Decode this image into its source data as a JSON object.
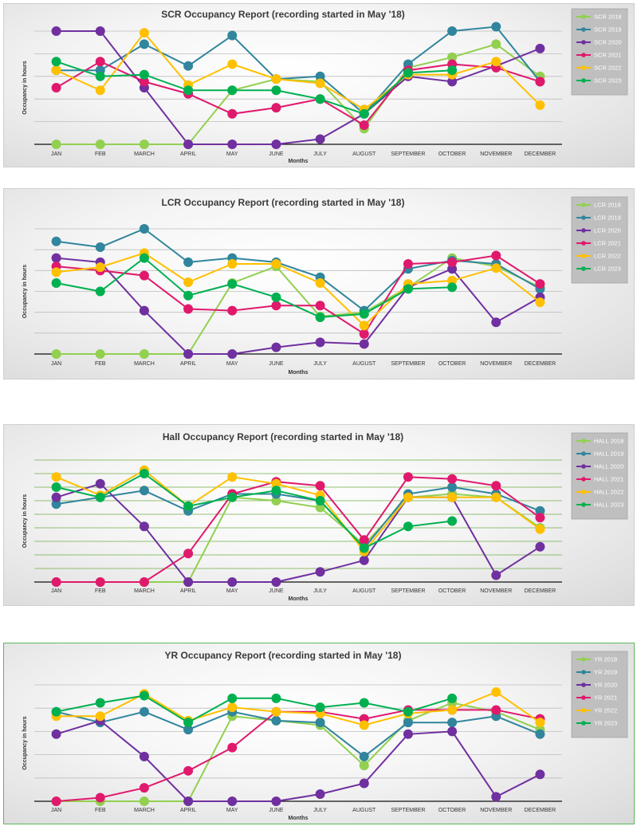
{
  "chart_data": [
    {
      "type": "line",
      "title": "SCR  Occupancy Report (recording started in May '18)",
      "xlabel": "Months",
      "ylabel": "Occupancy in hours",
      "categories": [
        "JAN",
        "FEB",
        "MARCH",
        "APRIL",
        "MAY",
        "JUNE",
        "JULY",
        "AUGUST",
        "SEPTEMBER",
        "OCTOBER",
        "NOVEMBER",
        "DECEMBER"
      ],
      "ylim": [
        0,
        130
      ],
      "grid": true,
      "legend": "right",
      "series": [
        {
          "name": "SCR 2018",
          "color": "#92d050",
          "values": [
            0,
            0,
            0,
            0,
            62,
            75,
            72,
            18,
            88,
            100,
            115,
            78
          ]
        },
        {
          "name": "SCR 2019",
          "color": "#31859c",
          "values": [
            85,
            85,
            115,
            90,
            125,
            75,
            78,
            35,
            92,
            130,
            135,
            72
          ]
        },
        {
          "name": "SCR 2020",
          "color": "#7030a0",
          "values": [
            130,
            130,
            65,
            0,
            0,
            0,
            6,
            35,
            78,
            72,
            90,
            110
          ]
        },
        {
          "name": "SCR 2021",
          "color": "#e0196c",
          "values": [
            65,
            95,
            72,
            58,
            35,
            42,
            52,
            22,
            85,
            92,
            88,
            72
          ]
        },
        {
          "name": "SCR 2022",
          "color": "#ffc000",
          "values": [
            85,
            62,
            128,
            68,
            92,
            75,
            70,
            40,
            80,
            80,
            95,
            45
          ]
        },
        {
          "name": "SCR 2023",
          "color": "#00b050",
          "values": [
            95,
            78,
            80,
            62,
            62,
            62,
            52,
            35,
            82,
            85,
            null,
            null
          ]
        }
      ]
    },
    {
      "type": "line",
      "title": "LCR  Occupancy Report (recording started in May '18)",
      "xlabel": "Months",
      "ylabel": "Occupancy in hours",
      "categories": [
        "JAN",
        "FEB",
        "MARCH",
        "APRIL",
        "MAY",
        "JUNE",
        "JULY",
        "AUGUST",
        "SEPTEMBER",
        "OCTOBER",
        "NOVEMBER",
        "DECEMBER"
      ],
      "ylim": [
        0,
        150
      ],
      "grid": true,
      "legend": "right",
      "series": [
        {
          "name": "LCR 2018",
          "color": "#92d050",
          "values": [
            0,
            0,
            0,
            0,
            85,
            105,
            45,
            50,
            80,
            115,
            105,
            80
          ]
        },
        {
          "name": "LCR 2019",
          "color": "#31859c",
          "values": [
            135,
            128,
            150,
            110,
            115,
            110,
            92,
            52,
            102,
            112,
            108,
            78
          ]
        },
        {
          "name": "LCR 2020",
          "color": "#7030a0",
          "values": [
            115,
            110,
            52,
            0,
            0,
            8,
            14,
            12,
            80,
            102,
            38,
            68
          ]
        },
        {
          "name": "LCR 2021",
          "color": "#e0196c",
          "values": [
            105,
            100,
            94,
            54,
            52,
            58,
            58,
            24,
            108,
            110,
            118,
            84
          ]
        },
        {
          "name": "LCR 2022",
          "color": "#ffc000",
          "values": [
            98,
            104,
            121,
            86,
            108,
            108,
            85,
            34,
            84,
            88,
            103,
            62
          ]
        },
        {
          "name": "LCR 2023",
          "color": "#00b050",
          "values": [
            85,
            75,
            115,
            70,
            84,
            68,
            44,
            48,
            78,
            80,
            null,
            null
          ]
        }
      ]
    },
    {
      "type": "line",
      "title": "Hall  Occupancy Report (recording started in May '18)",
      "xlabel": "Months",
      "ylabel": "Occupancy in hours",
      "categories": [
        "JAN",
        "FEB",
        "MARCH",
        "APRIL",
        "MAY",
        "JUNE",
        "JULY",
        "AUGUST",
        "SEPTEMBER",
        "OCTOBER",
        "NOVEMBER",
        "DECEMBER"
      ],
      "ylim": [
        0,
        180
      ],
      "grid": true,
      "legend": "right",
      "series": [
        {
          "name": "HALL 2018",
          "color": "#92d050",
          "values": [
            0,
            0,
            0,
            0,
            125,
            120,
            110,
            55,
            125,
            130,
            125,
            80
          ]
        },
        {
          "name": "HALL 2019",
          "color": "#31859c",
          "values": [
            115,
            125,
            135,
            105,
            130,
            130,
            120,
            50,
            130,
            140,
            130,
            105
          ]
        },
        {
          "name": "HALL 2020",
          "color": "#7030a0",
          "values": [
            125,
            145,
            82,
            0,
            0,
            0,
            15,
            32,
            125,
            125,
            10,
            52
          ]
        },
        {
          "name": "HALL 2021",
          "color": "#e0196c",
          "values": [
            0,
            0,
            0,
            42,
            130,
            148,
            142,
            62,
            155,
            152,
            142,
            95
          ]
        },
        {
          "name": "HALL 2022",
          "color": "#ffc000",
          "values": [
            155,
            128,
            165,
            112,
            155,
            145,
            128,
            45,
            125,
            125,
            125,
            78
          ]
        },
        {
          "name": "HALL 2023",
          "color": "#00b050",
          "values": [
            140,
            125,
            160,
            112,
            125,
            135,
            120,
            50,
            82,
            90,
            null,
            null
          ]
        }
      ]
    },
    {
      "type": "line",
      "title": "YR  Occupancy Report (recording started in May '18)",
      "xlabel": "Months",
      "ylabel": "Occupancy in hours",
      "categories": [
        "JAN",
        "FEB",
        "MARCH",
        "APRIL",
        "MAY",
        "JUNE",
        "JULY",
        "AUGUST",
        "SEPTEMBER",
        "OCTOBER",
        "NOVEMBER",
        "DECEMBER"
      ],
      "ylim": [
        0,
        130
      ],
      "grid": true,
      "legend": "right",
      "series": [
        {
          "name": "YR 2018",
          "color": "#92d050",
          "values": [
            0,
            0,
            0,
            0,
            95,
            90,
            85,
            40,
            90,
            110,
            100,
            80
          ]
        },
        {
          "name": "YR 2019",
          "color": "#31859c",
          "values": [
            100,
            88,
            100,
            80,
            100,
            90,
            88,
            50,
            88,
            88,
            95,
            75
          ]
        },
        {
          "name": "YR 2020",
          "color": "#7030a0",
          "values": [
            75,
            90,
            50,
            0,
            0,
            0,
            8,
            20,
            75,
            78,
            5,
            30
          ]
        },
        {
          "name": "YR 2021",
          "color": "#e0196c",
          "values": [
            0,
            4,
            15,
            34,
            60,
            100,
            100,
            92,
            102,
            102,
            102,
            92
          ]
        },
        {
          "name": "YR 2022",
          "color": "#ffc000",
          "values": [
            95,
            95,
            120,
            90,
            105,
            100,
            98,
            85,
            98,
            102,
            122,
            88
          ]
        },
        {
          "name": "YR 2023",
          "color": "#00b050",
          "values": [
            100,
            110,
            118,
            88,
            115,
            115,
            105,
            110,
            100,
            115,
            null,
            null
          ]
        }
      ]
    }
  ]
}
